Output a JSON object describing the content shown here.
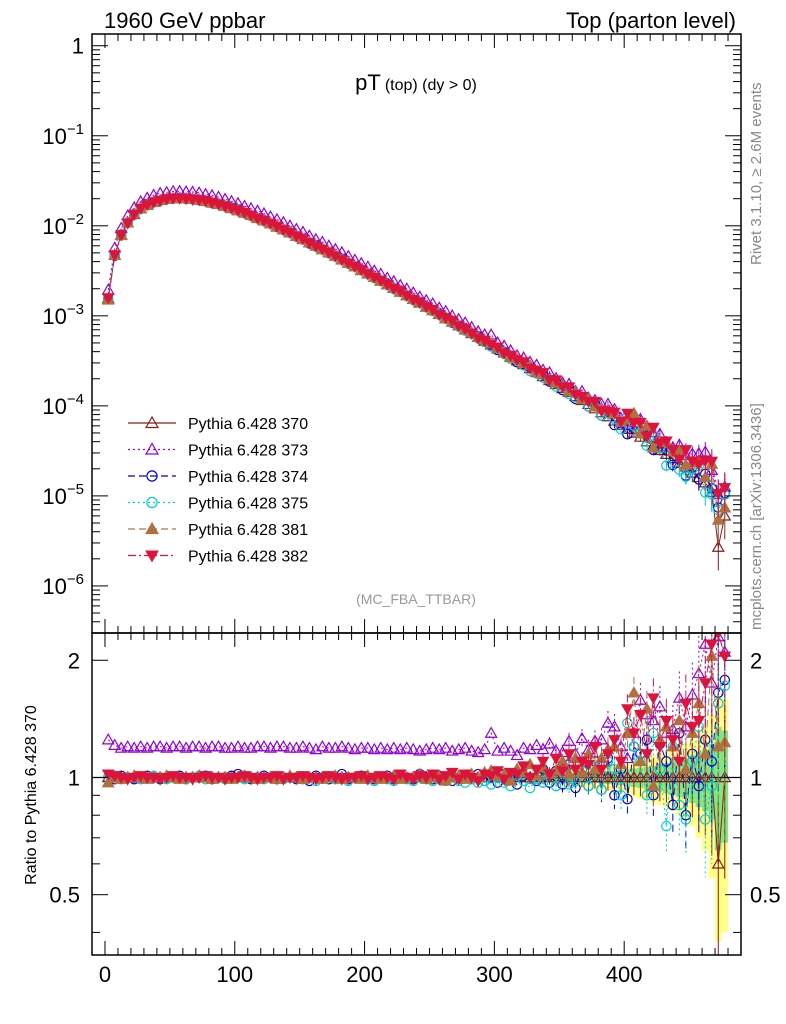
{
  "header": {
    "left": "1960 GeV ppbar",
    "right": "Top (parton level)"
  },
  "side": {
    "rivet": "Rivet 3.1.10, ≥ 2.6M events",
    "mcplots": "mcplots.cern.ch [arXiv:1306.3436]"
  },
  "chart_data": {
    "type": "line",
    "title": "pT (top) (dy > 0)",
    "title_main": "pT",
    "title_sub": "(top) (dy > 0)",
    "watermark": "(MC_FBA_TTBAR)",
    "ratio_ylabel": "Ratio to Pythia 6.428 370",
    "xlim": [
      -10,
      490
    ],
    "ylim": [
      3e-07,
      1.35
    ],
    "ylog": true,
    "ratio_ylim": [
      0.35,
      2.35
    ],
    "x_ticks": [
      "0",
      "100",
      "200",
      "300",
      "400"
    ],
    "y_ticks": [
      "10^-6",
      "10^-5",
      "10^-4",
      "10^-3",
      "10^-2",
      "10^-1",
      "1"
    ],
    "ratio_ticks": [
      "0.5",
      "1",
      "2"
    ],
    "legend_position": "middle-left",
    "x": [
      2.5,
      7.5,
      12.5,
      17.5,
      22.5,
      27.5,
      32.5,
      37.5,
      42.5,
      47.5,
      52.5,
      57.5,
      62.5,
      67.5,
      72.5,
      77.5,
      82.5,
      87.5,
      92.5,
      97.5,
      102.5,
      107.5,
      112.5,
      117.5,
      122.5,
      127.5,
      132.5,
      137.5,
      142.5,
      147.5,
      152.5,
      157.5,
      162.5,
      167.5,
      172.5,
      177.5,
      182.5,
      187.5,
      192.5,
      197.5,
      202.5,
      207.5,
      212.5,
      217.5,
      222.5,
      227.5,
      232.5,
      237.5,
      242.5,
      247.5,
      252.5,
      257.5,
      262.5,
      267.5,
      272.5,
      277.5,
      282.5,
      287.5,
      292.5,
      297.5,
      302.5,
      307.5,
      312.5,
      317.5,
      322.5,
      327.5,
      332.5,
      337.5,
      342.5,
      347.5,
      352.5,
      357.5,
      362.5,
      367.5,
      372.5,
      377.5,
      382.5,
      387.5,
      392.5,
      397.5,
      402.5,
      407.5,
      412.5,
      417.5,
      422.5,
      427.5,
      432.5,
      437.5,
      442.5,
      447.5,
      452.5,
      457.5,
      462.5,
      467.5,
      472.5,
      477.5
    ],
    "reference": [
      0.00155,
      0.0047,
      0.0079,
      0.0108,
      0.0134,
      0.0155,
      0.0171,
      0.0183,
      0.0192,
      0.0198,
      0.0201,
      0.0202,
      0.0201,
      0.0198,
      0.0194,
      0.0188,
      0.0181,
      0.0174,
      0.0166,
      0.0157,
      0.0148,
      0.0139,
      0.0131,
      0.0122,
      0.0114,
      0.0106,
      0.0098,
      0.0091,
      0.0084,
      0.0077,
      0.0071,
      0.0065,
      0.00598,
      0.00549,
      0.00503,
      0.00461,
      0.00422,
      0.00386,
      0.00353,
      0.00322,
      0.00294,
      0.00268,
      0.00245,
      0.00223,
      0.00203,
      0.00185,
      0.00168,
      0.00153,
      0.00139,
      0.00126,
      0.00115,
      0.00104,
      0.000945,
      0.000857,
      0.000778,
      0.000705,
      0.000639,
      0.000579,
      0.000524,
      0.000475,
      0.00043,
      0.000389,
      0.000352,
      0.000318,
      0.000288,
      0.00026,
      0.000235,
      0.000212,
      0.000192,
      0.000173,
      0.000156,
      0.000141,
      0.000127,
      0.000115,
      0.000104,
      9.3e-05,
      8.4e-05,
      7.6e-05,
      6.8e-05,
      6.1e-05,
      5.5e-05,
      5e-05,
      4.5e-05,
      4e-05,
      3.6e-05,
      3.2e-05,
      2.9e-05,
      2.6e-05,
      2.3e-05,
      2.1e-05,
      1.8e-05,
      1.6e-05,
      1.4e-05,
      1.1e-05,
      4.5e-06,
      6e-06
    ],
    "series": [
      {
        "name": "Pythia 6.428 370",
        "color": "#8b1a1a",
        "marker": "triangle-open",
        "dash": "solid",
        "ratio": [
          1,
          1,
          1,
          1,
          1,
          1,
          1,
          1,
          1,
          1,
          1,
          1,
          1,
          1,
          1,
          1,
          1,
          1,
          1,
          1,
          1,
          1,
          1,
          1,
          1,
          1,
          1,
          1,
          1,
          1,
          1,
          1,
          1,
          1,
          1,
          1,
          1,
          1,
          1,
          1,
          1,
          1,
          1,
          1,
          1,
          1,
          1,
          1,
          1,
          1,
          1,
          1,
          1,
          1,
          1,
          1,
          1,
          1,
          1,
          1,
          1,
          1,
          1,
          1,
          1,
          1,
          1,
          1,
          1,
          1,
          1,
          1,
          1,
          1,
          1,
          1,
          1,
          1,
          1,
          1,
          1,
          1,
          1,
          1,
          1,
          1,
          1,
          1,
          1,
          1,
          1,
          1,
          1,
          1,
          0.6,
          1
        ]
      },
      {
        "name": "Pythia 6.428 373",
        "color": "#9400d3",
        "marker": "triangle-open",
        "dash": "dotted",
        "ratio": [
          1.25,
          1.21,
          1.19,
          1.2,
          1.19,
          1.2,
          1.19,
          1.2,
          1.2,
          1.19,
          1.2,
          1.2,
          1.19,
          1.2,
          1.2,
          1.19,
          1.2,
          1.2,
          1.19,
          1.19,
          1.2,
          1.19,
          1.19,
          1.2,
          1.2,
          1.19,
          1.2,
          1.2,
          1.19,
          1.19,
          1.2,
          1.19,
          1.18,
          1.2,
          1.19,
          1.19,
          1.2,
          1.19,
          1.18,
          1.19,
          1.19,
          1.18,
          1.19,
          1.18,
          1.19,
          1.18,
          1.19,
          1.18,
          1.17,
          1.18,
          1.19,
          1.18,
          1.19,
          1.17,
          1.18,
          1.19,
          1.17,
          1.16,
          1.18,
          1.3,
          1.17,
          1.19,
          1.17,
          1.14,
          1.19,
          1.18,
          1.21,
          1.18,
          1.22,
          1.17,
          1.16,
          1.24,
          1.15,
          1.26,
          1.18,
          1.24,
          1.25,
          1.38,
          1.35,
          1.2,
          1.12,
          1.3,
          1.58,
          1.45,
          1.4,
          1.52,
          1.3,
          1.33,
          1.6,
          1.35,
          1.63,
          1.85,
          2.2,
          1.75,
          2.3,
          2.1
        ]
      },
      {
        "name": "Pythia 6.428 374",
        "color": "#0000cd",
        "marker": "circle-open",
        "dash": "dashed",
        "ratio": [
          1,
          0.99,
          1.01,
          1,
          0.99,
          1,
          1.01,
          1,
          0.99,
          1,
          1,
          1.01,
          0.99,
          1,
          1,
          1.01,
          0.99,
          1,
          1,
          1.01,
          1.02,
          1,
          0.99,
          1,
          1.01,
          1,
          0.99,
          1,
          1,
          0.99,
          1,
          0.98,
          1.01,
          1,
          0.99,
          1,
          1.02,
          0.99,
          1,
          1.01,
          1,
          0.99,
          1,
          1.01,
          0.99,
          1,
          1,
          0.99,
          1.02,
          1,
          0.99,
          1.01,
          1,
          0.98,
          1,
          1.01,
          0.99,
          1.02,
          0.98,
          1,
          0.97,
          1.02,
          0.99,
          0.96,
          1.01,
          1.03,
          0.98,
          1.05,
          0.97,
          1.04,
          0.96,
          1.08,
          0.94,
          1.05,
          0.95,
          1.1,
          0.93,
          1.12,
          0.9,
          1.05,
          0.88,
          1.2,
          1.15,
          1.25,
          0.9,
          1.22,
          1.1,
          0.85,
          1.3,
          0.8,
          1.15,
          0.95,
          1.25,
          1.1,
          1.65,
          1.78
        ]
      },
      {
        "name": "Pythia 6.428 375",
        "color": "#00ced1",
        "marker": "circle-open",
        "dash": "dotted",
        "ratio": [
          1,
          1.01,
          0.99,
          1,
          1,
          0.99,
          1,
          1.01,
          1,
          0.99,
          1,
          1,
          0.99,
          1,
          1.01,
          0.99,
          1,
          1,
          0.99,
          1,
          1,
          0.99,
          1,
          1,
          0.99,
          1,
          1,
          0.99,
          1,
          1,
          0.99,
          1,
          0.98,
          1,
          1,
          0.99,
          1,
          0.98,
          1,
          1,
          0.99,
          0.98,
          1,
          0.99,
          0.98,
          1,
          0.99,
          0.98,
          1,
          0.99,
          0.98,
          0.99,
          0.98,
          1,
          0.98,
          0.97,
          0.99,
          0.97,
          0.98,
          0.96,
          1,
          0.97,
          0.95,
          1.01,
          0.98,
          0.94,
          0.99,
          0.97,
          1.02,
          0.95,
          1.03,
          0.96,
          0.98,
          1.04,
          0.95,
          1.06,
          0.93,
          1.1,
          1.05,
          0.9,
          1.38,
          1.2,
          1.1,
          0.9,
          1.3,
          1.05,
          0.75,
          1.2,
          0.85,
          0.78,
          1.1,
          1.35,
          0.78,
          0.95,
          1.55,
          1.72
        ]
      },
      {
        "name": "Pythia 6.428 381",
        "color": "#b07040",
        "marker": "triangle-filled",
        "dash": "dashed",
        "ratio": [
          0.97,
          1,
          0.99,
          1,
          1.01,
          1,
          0.99,
          1,
          1,
          1.01,
          1,
          0.99,
          1,
          1,
          1.01,
          1,
          0.99,
          1,
          1,
          0.99,
          1,
          1.01,
          1,
          0.99,
          1,
          1,
          0.99,
          1,
          1.01,
          1,
          0.99,
          1,
          1,
          0.99,
          1,
          1.01,
          0.99,
          1,
          1,
          0.99,
          1.01,
          1,
          0.99,
          1,
          1.01,
          0.99,
          1,
          1,
          1.02,
          0.99,
          1,
          1.01,
          0.98,
          1,
          1.01,
          0.99,
          1.02,
          1,
          1.03,
          1.04,
          1.01,
          1.02,
          0.98,
          1.05,
          1.03,
          1.08,
          1.01,
          1.06,
          1.02,
          1.04,
          1.1,
          1.02,
          1.12,
          1.03,
          1.15,
          1.05,
          1.12,
          1.18,
          1.2,
          1.08,
          1.3,
          1.65,
          1.1,
          1.5,
          0.95,
          1.25,
          1.35,
          1.2,
          1.4,
          1.05,
          1.3,
          1.55,
          1.15,
          2.05,
          1.2,
          1.23
        ]
      },
      {
        "name": "Pythia 6.428 382",
        "color": "#dc143c",
        "marker": "triangle-down-filled",
        "dash": "dashdot",
        "ratio": [
          1.02,
          1.01,
          1,
          0.99,
          1,
          1.01,
          1,
          1,
          0.99,
          1,
          1.01,
          1,
          1,
          0.99,
          1,
          1.01,
          1,
          1,
          0.99,
          1,
          1,
          1.01,
          1,
          0.99,
          1,
          1,
          1.01,
          0.99,
          1,
          1,
          1.01,
          1,
          0.99,
          1,
          1.01,
          1,
          0.99,
          1,
          1,
          1.01,
          0.99,
          1,
          1.01,
          1,
          0.99,
          1.02,
          1,
          0.99,
          1.01,
          1,
          1.02,
          0.99,
          1.01,
          1.03,
          0.99,
          1.02,
          1,
          0.98,
          1.02,
          1.01,
          1.04,
          0.99,
          1.03,
          1.02,
          1.07,
          1,
          1.05,
          1.1,
          1.02,
          1.12,
          1.04,
          1.15,
          1.05,
          1.1,
          1.08,
          1.2,
          1.05,
          1.15,
          1.25,
          1.1,
          1.5,
          1.3,
          1.45,
          1.15,
          1.6,
          1.2,
          1.4,
          1.25,
          1.1,
          1.55,
          1.35,
          1.4,
          1.75,
          2.2,
          2.35,
          2.05
        ]
      }
    ],
    "band_yellow": [
      0.005,
      0.005,
      0.005,
      0.005,
      0.005,
      0.005,
      0.005,
      0.005,
      0.005,
      0.005,
      0.005,
      0.005,
      0.005,
      0.005,
      0.005,
      0.005,
      0.005,
      0.005,
      0.005,
      0.005,
      0.005,
      0.005,
      0.005,
      0.005,
      0.005,
      0.005,
      0.005,
      0.005,
      0.005,
      0.005,
      0.005,
      0.005,
      0.005,
      0.005,
      0.005,
      0.005,
      0.005,
      0.005,
      0.005,
      0.005,
      0.006,
      0.006,
      0.006,
      0.007,
      0.007,
      0.008,
      0.008,
      0.009,
      0.01,
      0.011,
      0.012,
      0.013,
      0.014,
      0.015,
      0.016,
      0.017,
      0.018,
      0.019,
      0.02,
      0.021,
      0.023,
      0.025,
      0.027,
      0.029,
      0.031,
      0.033,
      0.035,
      0.038,
      0.04,
      0.043,
      0.046,
      0.05,
      0.054,
      0.058,
      0.062,
      0.068,
      0.075,
      0.08,
      0.085,
      0.09,
      0.1,
      0.11,
      0.12,
      0.13,
      0.14,
      0.15,
      0.16,
      0.18,
      0.2,
      0.22,
      0.25,
      0.3,
      0.35,
      0.45,
      0.62,
      0.6
    ],
    "band_green": [
      0.003,
      0.003,
      0.003,
      0.003,
      0.003,
      0.003,
      0.003,
      0.003,
      0.003,
      0.003,
      0.003,
      0.003,
      0.003,
      0.003,
      0.003,
      0.003,
      0.003,
      0.003,
      0.003,
      0.003,
      0.003,
      0.003,
      0.003,
      0.003,
      0.003,
      0.003,
      0.003,
      0.003,
      0.003,
      0.003,
      0.003,
      0.003,
      0.003,
      0.003,
      0.003,
      0.003,
      0.003,
      0.003,
      0.003,
      0.003,
      0.003,
      0.003,
      0.004,
      0.004,
      0.004,
      0.004,
      0.005,
      0.005,
      0.005,
      0.006,
      0.006,
      0.006,
      0.007,
      0.007,
      0.008,
      0.008,
      0.009,
      0.009,
      0.01,
      0.011,
      0.011,
      0.012,
      0.013,
      0.014,
      0.015,
      0.016,
      0.017,
      0.018,
      0.019,
      0.02,
      0.022,
      0.024,
      0.026,
      0.028,
      0.03,
      0.032,
      0.035,
      0.038,
      0.04,
      0.045,
      0.05,
      0.055,
      0.06,
      0.065,
      0.07,
      0.08,
      0.09,
      0.1,
      0.11,
      0.12,
      0.14,
      0.16,
      0.18,
      0.22,
      0.35,
      0.32
    ]
  }
}
